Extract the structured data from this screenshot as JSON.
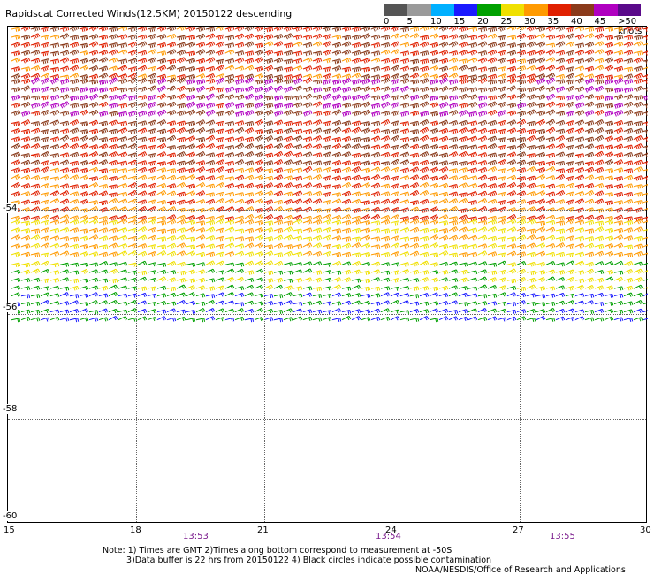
{
  "title": "Rapidscat Corrected Winds(12.5KM) 20150122 descending",
  "legend": {
    "ticks": [
      "0",
      "5",
      "10",
      "15",
      "20",
      "25",
      "30",
      "35",
      "40",
      "45",
      ">50 knots"
    ],
    "colors": [
      "#555555",
      "#9a9a9a",
      "#00b0ff",
      "#1a1aff",
      "#00a000",
      "#f0e000",
      "#ff9a00",
      "#e02000",
      "#8a3a1a",
      "#b000c0",
      "#5a0a8a"
    ]
  },
  "y_axis": {
    "labels": [
      "-54",
      "-56",
      "-58",
      "-60"
    ]
  },
  "x_axis": {
    "labels": [
      "15",
      "18",
      "21",
      "24",
      "27",
      "30"
    ]
  },
  "time_labels": [
    "13:53",
    "13:54",
    "13:55"
  ],
  "notes": {
    "line1": "Note: 1) Times are GMT 2)Times along bottom correspond to measurement at -50S",
    "line2": "3)Data buffer is 22 hrs from 20150122 4) Black circles indicate possible contamination"
  },
  "credit": "NOAA/NESDIS/Office of Research and Applications",
  "map_data": {
    "lon_range": [
      15,
      30
    ],
    "lat_range": [
      -60,
      -50.5
    ],
    "wind_bands": [
      {
        "lat_from": -50.5,
        "lat_to": -51.5,
        "speed_knots": 38
      },
      {
        "lat_from": -51.5,
        "lat_to": -52.3,
        "speed_knots": 44
      },
      {
        "lat_from": -52.3,
        "lat_to": -53.2,
        "speed_knots": 40
      },
      {
        "lat_from": -53.2,
        "lat_to": -54.2,
        "speed_knots": 35
      },
      {
        "lat_from": -54.2,
        "lat_to": -55.0,
        "speed_knots": 30
      },
      {
        "lat_from": -55.0,
        "lat_to": -55.6,
        "speed_knots": 25
      },
      {
        "lat_from": -55.6,
        "lat_to": -56.2,
        "speed_knots": 20
      }
    ]
  }
}
